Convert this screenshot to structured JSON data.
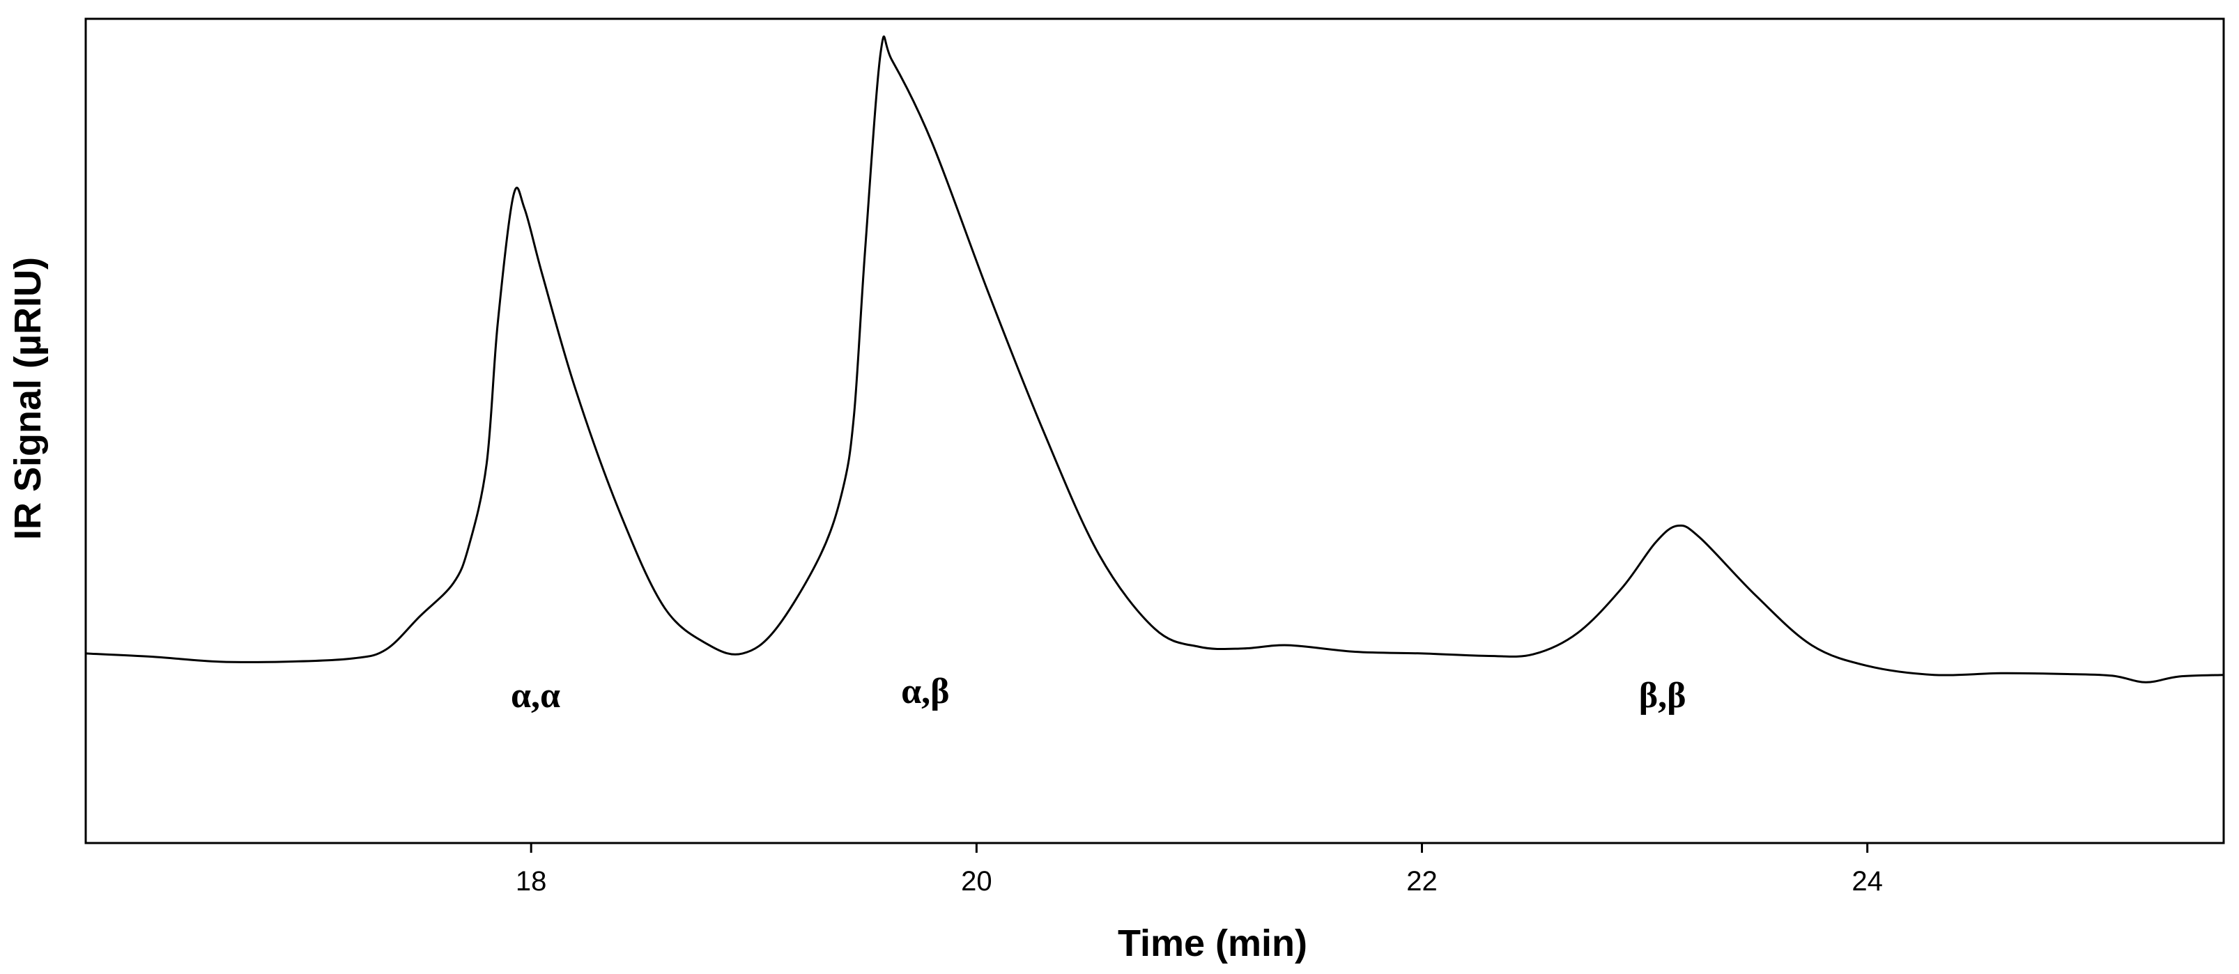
{
  "chart_data": {
    "type": "line",
    "title": "",
    "xlabel": "Time (min)",
    "ylabel": "IR Signal (µRIU)",
    "xlim": [
      16.0,
      25.6
    ],
    "ylim": [
      0,
      100
    ],
    "grid": false,
    "legend": "none",
    "x_ticks": [
      {
        "value": 18,
        "label": "18"
      },
      {
        "value": 20,
        "label": "20"
      },
      {
        "value": 22,
        "label": "22"
      },
      {
        "value": 24,
        "label": "24"
      }
    ],
    "series": [
      {
        "color": "#000000",
        "points": [
          [
            16.0,
            23.0
          ],
          [
            16.3,
            22.6
          ],
          [
            16.6,
            22.0
          ],
          [
            16.9,
            22.0
          ],
          [
            17.2,
            22.4
          ],
          [
            17.35,
            23.5
          ],
          [
            17.5,
            27.5
          ],
          [
            17.65,
            31.5
          ],
          [
            17.72,
            36.0
          ],
          [
            17.8,
            46.0
          ],
          [
            17.85,
            63.0
          ],
          [
            17.92,
            78.5
          ],
          [
            17.97,
            77.0
          ],
          [
            18.05,
            69.0
          ],
          [
            18.2,
            55.0
          ],
          [
            18.4,
            40.0
          ],
          [
            18.6,
            28.5
          ],
          [
            18.8,
            24.0
          ],
          [
            18.95,
            23.0
          ],
          [
            19.1,
            26.0
          ],
          [
            19.3,
            35.0
          ],
          [
            19.4,
            43.0
          ],
          [
            19.45,
            52.0
          ],
          [
            19.5,
            72.0
          ],
          [
            19.57,
            96.0
          ],
          [
            19.62,
            95.0
          ],
          [
            19.8,
            85.0
          ],
          [
            20.05,
            67.0
          ],
          [
            20.3,
            50.0
          ],
          [
            20.55,
            35.0
          ],
          [
            20.8,
            26.0
          ],
          [
            21.0,
            23.8
          ],
          [
            21.2,
            23.6
          ],
          [
            21.4,
            24.0
          ],
          [
            21.7,
            23.2
          ],
          [
            22.0,
            23.0
          ],
          [
            22.3,
            22.7
          ],
          [
            22.5,
            22.9
          ],
          [
            22.7,
            25.5
          ],
          [
            22.9,
            31.0
          ],
          [
            23.05,
            36.5
          ],
          [
            23.15,
            38.5
          ],
          [
            23.25,
            37.0
          ],
          [
            23.5,
            30.0
          ],
          [
            23.75,
            24.0
          ],
          [
            24.0,
            21.5
          ],
          [
            24.3,
            20.4
          ],
          [
            24.6,
            20.6
          ],
          [
            24.9,
            20.5
          ],
          [
            25.1,
            20.3
          ],
          [
            25.25,
            19.5
          ],
          [
            25.4,
            20.2
          ],
          [
            25.6,
            20.4
          ]
        ]
      }
    ],
    "annotations": [
      {
        "text": "α,α",
        "x": 18.02,
        "y": 16.5
      },
      {
        "text": "α,β",
        "x": 19.77,
        "y": 17.0
      },
      {
        "text": "β,β",
        "x": 23.08,
        "y": 16.5
      }
    ]
  }
}
